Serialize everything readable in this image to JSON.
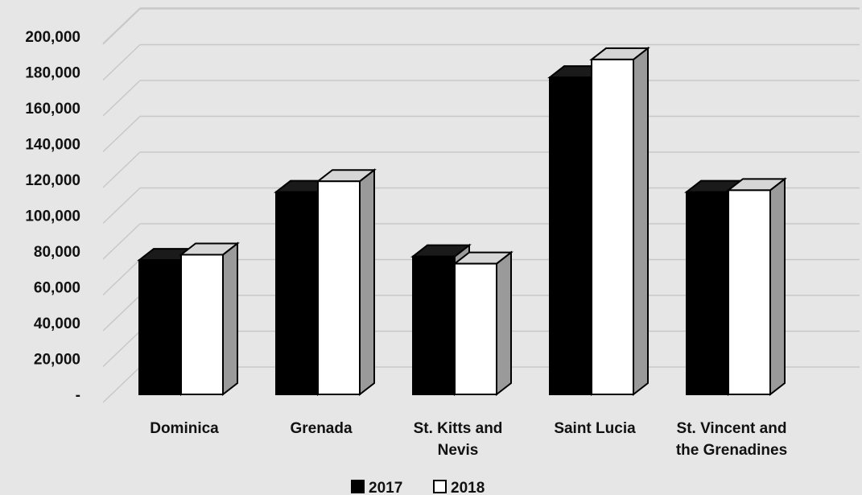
{
  "chart_data": {
    "type": "bar",
    "title": "",
    "xlabel": "",
    "ylabel": "",
    "categories": [
      [
        "Dominica"
      ],
      [
        "Grenada"
      ],
      [
        "St. Kitts and",
        "Nevis"
      ],
      [
        "Saint Lucia"
      ],
      [
        "St. Vincent and",
        "the Grenadines"
      ]
    ],
    "series": [
      {
        "name": "2017",
        "color": "#000000",
        "values": [
          75000,
          113000,
          77000,
          177000,
          113000
        ]
      },
      {
        "name": "2018",
        "color": "#ffffff",
        "values": [
          78000,
          119000,
          73000,
          187000,
          114000
        ]
      }
    ],
    "ylim": [
      0,
      200000
    ],
    "yticks": [
      {
        "value": 0,
        "label": "-"
      },
      {
        "value": 20000,
        "label": "20,000"
      },
      {
        "value": 40000,
        "label": "40,000"
      },
      {
        "value": 60000,
        "label": "60,000"
      },
      {
        "value": 80000,
        "label": "80,000"
      },
      {
        "value": 100000,
        "label": "100,000"
      },
      {
        "value": 120000,
        "label": "120,000"
      },
      {
        "value": 140000,
        "label": "140,000"
      },
      {
        "value": 160000,
        "label": "160,000"
      },
      {
        "value": 180000,
        "label": "180,000"
      },
      {
        "value": 200000,
        "label": "200,000"
      }
    ],
    "grid": true,
    "style": "3d-clustered",
    "legend": {
      "position": "bottom",
      "entries": [
        "2017",
        "2018"
      ]
    },
    "colors": {
      "background": "#e6e6e6",
      "grid": "#c8c8c8",
      "side": "#9a9a9a",
      "top2017": "#1a1a1a",
      "top2018": "#d6d6d6"
    }
  }
}
